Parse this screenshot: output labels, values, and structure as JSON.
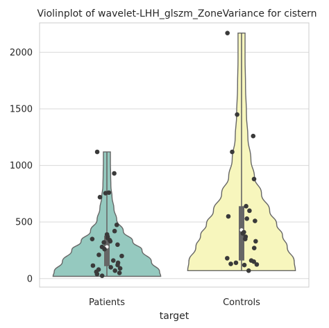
{
  "chart_data": {
    "type": "violin",
    "title": "Violinplot of wavelet-LHH_glszm_ZoneVariance for cistern",
    "xlabel": "target",
    "ylabel": "",
    "categories": [
      "Patients",
      "Controls"
    ],
    "y_ticks": [
      0,
      500,
      1000,
      1500,
      2000
    ],
    "ylim": [
      -75,
      2260
    ],
    "grid": "horizontal",
    "colors": {
      "Patients": "#95c9bf",
      "Controls": "#f7f6bd",
      "points": "#3a3a3a",
      "outline": "#666666",
      "grid": "#d9d9d9"
    },
    "series": [
      {
        "name": "Patients",
        "min": 20,
        "max": 1120,
        "q1": 110,
        "median": 280,
        "q3": 380,
        "points": [
          1120,
          930,
          760,
          755,
          720,
          475,
          420,
          390,
          370,
          360,
          350,
          340,
          330,
          320,
          300,
          280,
          260,
          210,
          200,
          160,
          140,
          120,
          115,
          100,
          90,
          80,
          70,
          60,
          50,
          40,
          25
        ],
        "density": [
          [
            20,
            230
          ],
          [
            60,
            225
          ],
          [
            150,
            190
          ],
          [
            250,
            150
          ],
          [
            330,
            110
          ],
          [
            420,
            70
          ],
          [
            520,
            42
          ],
          [
            620,
            30
          ],
          [
            720,
            22
          ],
          [
            820,
            17
          ],
          [
            920,
            16
          ],
          [
            1020,
            15
          ],
          [
            1120,
            15
          ]
        ]
      },
      {
        "name": "Controls",
        "min": 70,
        "max": 2170,
        "q1": 160,
        "median": 430,
        "q3": 640,
        "points": [
          2170,
          1450,
          1260,
          1120,
          880,
          640,
          600,
          550,
          530,
          510,
          410,
          400,
          370,
          350,
          330,
          270,
          180,
          160,
          150,
          140,
          130,
          125,
          120,
          70
        ],
        "density": [
          [
            70,
            230
          ],
          [
            150,
            225
          ],
          [
            280,
            195
          ],
          [
            380,
            175
          ],
          [
            480,
            150
          ],
          [
            600,
            120
          ],
          [
            750,
            85
          ],
          [
            900,
            55
          ],
          [
            1050,
            40
          ],
          [
            1250,
            27
          ],
          [
            1450,
            21
          ],
          [
            1700,
            17
          ],
          [
            1950,
            15
          ],
          [
            2170,
            15
          ]
        ]
      }
    ]
  }
}
